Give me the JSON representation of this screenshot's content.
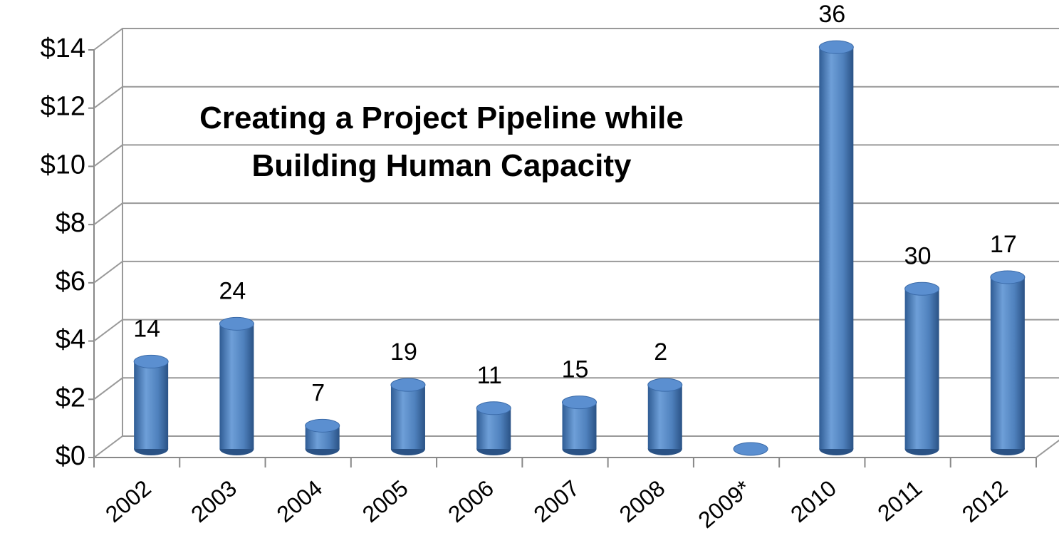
{
  "chart_data": {
    "type": "bar",
    "title": [
      "Creating a Project Pipeline while",
      "Building Human Capacity"
    ],
    "categories": [
      "2002",
      "2003",
      "2004",
      "2005",
      "2006",
      "2007",
      "2008",
      "2009*",
      "2010",
      "2011",
      "2012"
    ],
    "values": [
      3.0,
      4.3,
      0.8,
      2.2,
      1.4,
      1.6,
      2.2,
      0,
      13.8,
      5.5,
      5.9
    ],
    "point_labels": [
      14,
      24,
      7,
      19,
      11,
      15,
      2,
      null,
      36,
      30,
      17
    ],
    "color": "#4f81bd",
    "ylim": [
      0,
      14
    ],
    "yticks": [
      {
        "value": 0,
        "label": "$0"
      },
      {
        "value": 2,
        "label": "$2"
      },
      {
        "value": 4,
        "label": "$4"
      },
      {
        "value": 6,
        "label": "$6"
      },
      {
        "value": 8,
        "label": "$8"
      },
      {
        "value": 10,
        "label": "$10"
      },
      {
        "value": 12,
        "label": "$12"
      },
      {
        "value": 14,
        "label": "$14"
      }
    ],
    "grid": true
  }
}
